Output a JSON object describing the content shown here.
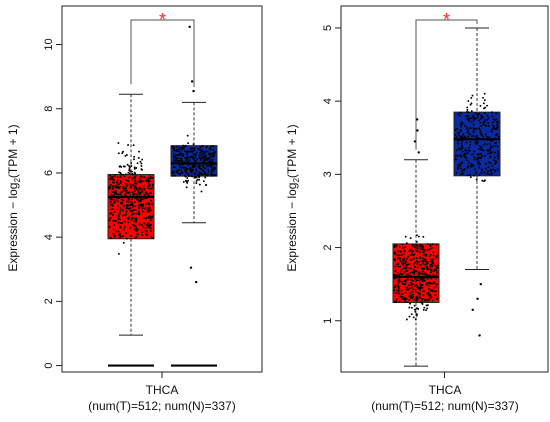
{
  "chart_data": [
    {
      "type": "box",
      "cancer": "THCA",
      "subtitle": "(num(T)=512; num(N)=337)",
      "ylabel_prefix": "Expression − log",
      "ylabel_sub": "2",
      "ylabel_suffix": "(TPM + 1)",
      "ylim": [
        -0.2,
        11.2
      ],
      "yticks": [
        0,
        2,
        4,
        6,
        8,
        10
      ],
      "significance": "*",
      "groups": [
        {
          "group": "T",
          "color": "#ff0000",
          "min": 0.95,
          "q1": 3.95,
          "median": 5.25,
          "q3": 5.95,
          "max": 8.45,
          "outliers": [
            0.0
          ]
        },
        {
          "group": "N",
          "color": "#0b2a9e",
          "min": 4.45,
          "q1": 5.9,
          "median": 6.3,
          "q3": 6.85,
          "max": 8.2,
          "outliers": [
            0.0,
            2.6,
            3.05,
            8.55,
            8.85,
            10.55
          ]
        }
      ]
    },
    {
      "type": "box",
      "cancer": "THCA",
      "subtitle": "(num(T)=512; num(N)=337)",
      "ylabel_prefix": "Expression − log",
      "ylabel_sub": "2",
      "ylabel_suffix": "(TPM + 1)",
      "ylim": [
        0.3,
        5.3
      ],
      "yticks": [
        1,
        2,
        3,
        4,
        5
      ],
      "significance": "*",
      "groups": [
        {
          "group": "T",
          "color": "#ff0000",
          "min": 0.38,
          "q1": 1.25,
          "median": 1.6,
          "q3": 2.05,
          "max": 3.2,
          "outliers": [
            3.3,
            3.45,
            3.6,
            3.75
          ]
        },
        {
          "group": "N",
          "color": "#0b2a9e",
          "min": 1.7,
          "q1": 2.98,
          "median": 3.48,
          "q3": 3.85,
          "max": 5.0,
          "outliers": [
            0.8,
            1.15,
            1.3,
            1.5
          ]
        }
      ]
    }
  ]
}
